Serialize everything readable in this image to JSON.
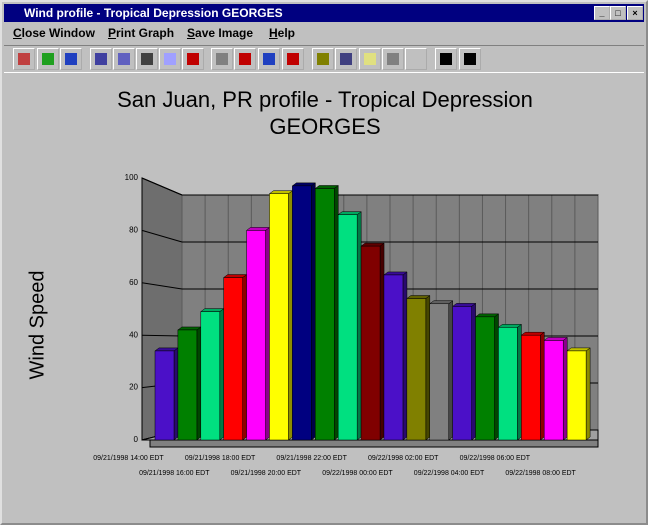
{
  "window": {
    "title": "Wind profile - Tropical Depression GEORGES"
  },
  "menu": {
    "items": [
      "Close Window",
      "Print Graph",
      "Save Image",
      "Help"
    ]
  },
  "chart_data": {
    "type": "bar",
    "title": "San Juan, PR  profile - Tropical Depression GEORGES",
    "y_label": "Wind Speed",
    "categories": [
      "09/21/1998 14:00 EDT",
      null,
      "09/21/1998 16:00 EDT",
      null,
      "09/21/1998 18:00 EDT",
      null,
      "09/21/1998 20:00 EDT",
      null,
      "09/21/1998 22:00 EDT",
      null,
      "09/22/1998 00:00 EDT",
      null,
      "09/22/1998 02:00 EDT",
      null,
      "09/22/1998 04:00 EDT",
      null,
      "09/22/1998 06:00 EDT",
      null,
      "09/22/1998 08:00 EDT"
    ],
    "values": [
      34,
      42,
      49,
      62,
      80,
      94,
      97,
      96,
      86,
      74,
      63,
      54,
      52,
      51,
      47,
      43,
      40,
      38,
      34
    ],
    "colors": [
      "#4b10c8",
      "#008000",
      "#00e080",
      "#ff0000",
      "#ff00ff",
      "#ffff00",
      "#000080",
      "#008000",
      "#00e080",
      "#800000",
      "#4b10c8",
      "#808000",
      "#808080",
      "#4b10c8",
      "#008000",
      "#00e080",
      "#ff0000",
      "#ff00ff",
      "#ffff00"
    ],
    "ylim": [
      0,
      100
    ],
    "yticks": [
      0,
      20,
      40,
      60,
      80,
      100
    ],
    "grid": true
  }
}
